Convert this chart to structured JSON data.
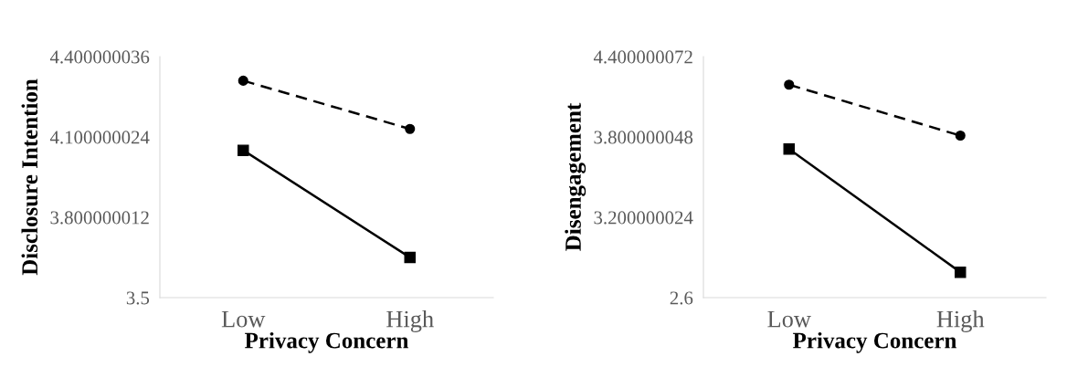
{
  "chart_data": [
    {
      "type": "line",
      "xlabel": "Privacy Concern",
      "ylabel": "Disclosure Intention",
      "categories": [
        "Low",
        "High"
      ],
      "series": [
        {
          "color": "#000000",
          "values": [
            4.31,
            4.13
          ],
          "marker": "circle",
          "line_style": "dashed"
        },
        {
          "color": "#000000",
          "values": [
            4.05,
            3.65
          ],
          "marker": "square",
          "line_style": "solid"
        }
      ],
      "ylim": [
        3.5,
        4.400000036
      ],
      "yticks": [
        3.5,
        3.800000012,
        4.100000024,
        4.400000036
      ],
      "grid": false,
      "legend": false
    },
    {
      "type": "line",
      "xlabel": "Privacy Concern",
      "ylabel": "Disengagement",
      "categories": [
        "Low",
        "High"
      ],
      "series": [
        {
          "color": "#000000",
          "values": [
            4.19,
            3.81
          ],
          "marker": "circle",
          "line_style": "dashed"
        },
        {
          "color": "#000000",
          "values": [
            3.71,
            2.79
          ],
          "marker": "square",
          "line_style": "solid"
        }
      ],
      "ylim": [
        2.6,
        4.400000072
      ],
      "yticks": [
        2.6,
        3.200000024,
        3.800000048,
        4.400000072
      ],
      "grid": false,
      "legend": false
    }
  ]
}
